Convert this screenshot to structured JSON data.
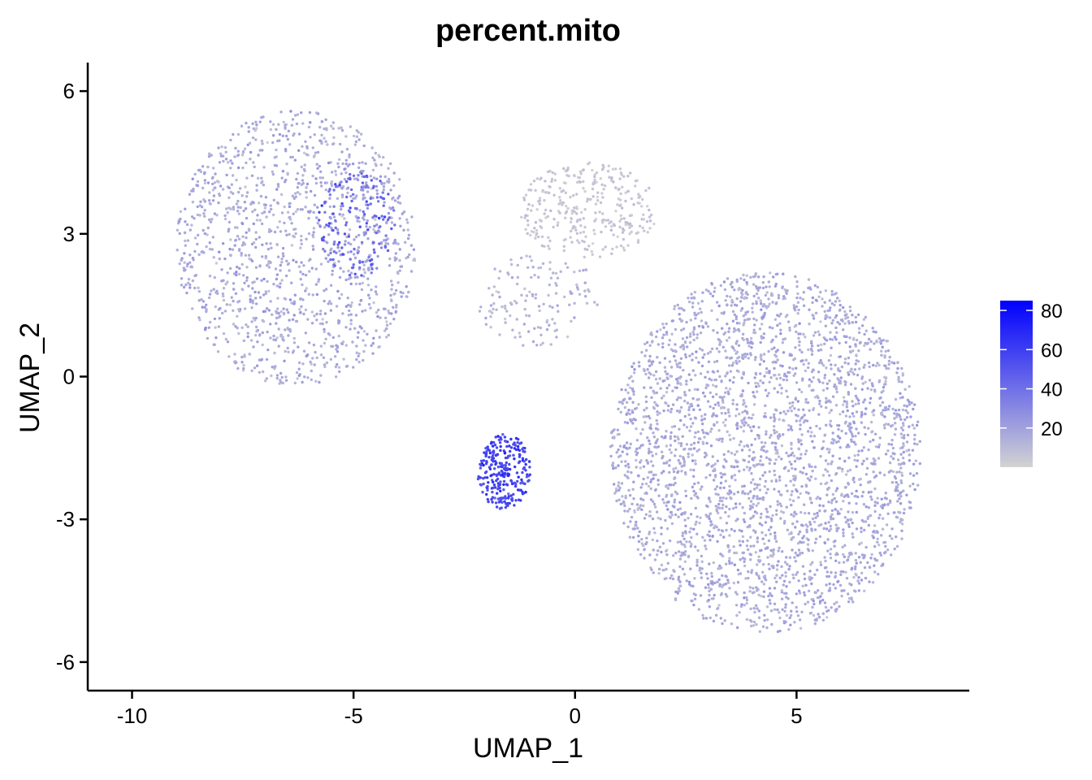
{
  "chart_data": {
    "type": "scatter",
    "title": "percent.mito",
    "xlabel": "UMAP_1",
    "ylabel": "UMAP_2",
    "xlim": [
      -11,
      8.9
    ],
    "ylim": [
      -6.6,
      6.6
    ],
    "xticks": [
      -10,
      -5,
      0,
      5
    ],
    "yticks": [
      -6,
      -3,
      0,
      3,
      6
    ],
    "xtick_labels": [
      "-10",
      "-5",
      "0",
      "5"
    ],
    "ytick_labels": [
      "-6",
      "-3",
      "0",
      "3",
      "6"
    ],
    "grid": false,
    "legend": {
      "placement": "right",
      "type": "colorbar",
      "range": [
        0,
        85
      ],
      "ticks": [
        20,
        40,
        60,
        80
      ],
      "tick_labels": [
        "20",
        "40",
        "60",
        "80"
      ],
      "low_color": "#d3d3d3",
      "high_color": "#0000ff"
    },
    "clusters": [
      {
        "cx": -6.3,
        "cy": 2.7,
        "rx": 2.7,
        "ry": 2.9,
        "n": 1300,
        "mito_mean": 16,
        "mito_spread": 8
      },
      {
        "cx": -4.9,
        "cy": 3.2,
        "rx": 0.9,
        "ry": 1.1,
        "n": 160,
        "mito_mean": 42,
        "mito_spread": 14
      },
      {
        "cx": 0.3,
        "cy": 3.5,
        "rx": 1.6,
        "ry": 1.0,
        "n": 320,
        "mito_mean": 5,
        "mito_spread": 4
      },
      {
        "cx": -0.8,
        "cy": 1.6,
        "rx": 1.4,
        "ry": 1.0,
        "n": 140,
        "mito_mean": 12,
        "mito_spread": 7
      },
      {
        "cx": 4.3,
        "cy": -1.6,
        "rx": 3.5,
        "ry": 3.8,
        "n": 3000,
        "mito_mean": 16,
        "mito_spread": 7
      },
      {
        "cx": -1.6,
        "cy": -2.0,
        "rx": 0.6,
        "ry": 0.8,
        "n": 260,
        "mito_mean": 58,
        "mito_spread": 10
      }
    ]
  }
}
